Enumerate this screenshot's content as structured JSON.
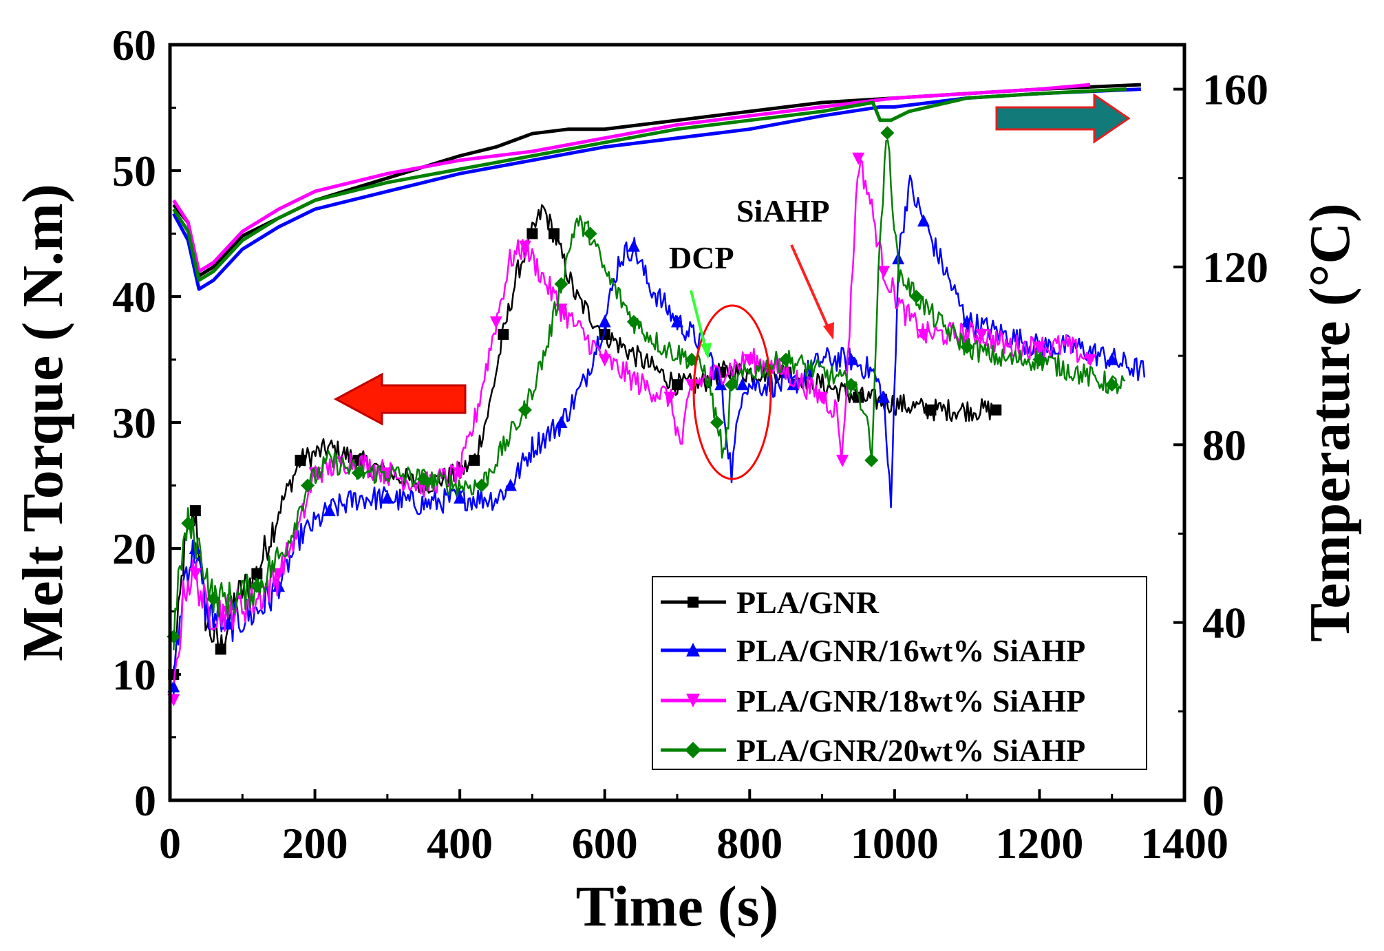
{
  "chart_data": {
    "type": "line",
    "xlabel": "Time (s)",
    "ylabel": "Melt Torque ( N.m)",
    "y2label": "Temperature (°C)",
    "xlim": [
      0,
      1400
    ],
    "ylim": [
      0,
      60
    ],
    "y2lim": [
      0,
      170
    ],
    "xticks": [
      0,
      200,
      400,
      600,
      800,
      1000,
      1200,
      1400
    ],
    "yticks": [
      0,
      10,
      20,
      30,
      40,
      50,
      60
    ],
    "y2ticks": [
      0,
      40,
      80,
      120,
      160
    ],
    "legend_position": "bottom-right",
    "series": [
      {
        "name": "PLA/GNR",
        "color": "#000000",
        "marker": "square",
        "points": [
          [
            5,
            10
          ],
          [
            20,
            20
          ],
          [
            35,
            23
          ],
          [
            50,
            14
          ],
          [
            70,
            12
          ],
          [
            90,
            16
          ],
          [
            120,
            18
          ],
          [
            150,
            23
          ],
          [
            180,
            27
          ],
          [
            220,
            28
          ],
          [
            260,
            27
          ],
          [
            300,
            26
          ],
          [
            350,
            25
          ],
          [
            400,
            26
          ],
          [
            420,
            27
          ],
          [
            440,
            31
          ],
          [
            460,
            37
          ],
          [
            480,
            42
          ],
          [
            500,
            45
          ],
          [
            515,
            47
          ],
          [
            530,
            45
          ],
          [
            560,
            40
          ],
          [
            600,
            37
          ],
          [
            650,
            35
          ],
          [
            700,
            33
          ],
          [
            730,
            33
          ],
          [
            760,
            34
          ],
          [
            800,
            34
          ],
          [
            850,
            34
          ],
          [
            900,
            33
          ],
          [
            950,
            32
          ],
          [
            1000,
            31.5
          ],
          [
            1050,
            31
          ],
          [
            1100,
            31
          ],
          [
            1140,
            31
          ]
        ],
        "temp": [
          [
            5,
            134
          ],
          [
            25,
            130
          ],
          [
            40,
            118
          ],
          [
            60,
            120
          ],
          [
            100,
            127
          ],
          [
            150,
            131
          ],
          [
            200,
            135
          ],
          [
            300,
            140
          ],
          [
            400,
            145
          ],
          [
            450,
            147
          ],
          [
            500,
            150
          ],
          [
            550,
            151
          ],
          [
            600,
            151
          ],
          [
            700,
            153
          ],
          [
            800,
            155
          ],
          [
            900,
            157
          ],
          [
            1000,
            158
          ],
          [
            1100,
            159
          ],
          [
            1200,
            160
          ],
          [
            1340,
            161
          ]
        ]
      },
      {
        "name": "PLA/GNR/16wt% SiAHP",
        "color": "#0000ff",
        "marker": "triangle-up",
        "points": [
          [
            5,
            9
          ],
          [
            20,
            18
          ],
          [
            35,
            20
          ],
          [
            50,
            15
          ],
          [
            80,
            14
          ],
          [
            120,
            15
          ],
          [
            150,
            17
          ],
          [
            180,
            21
          ],
          [
            220,
            23
          ],
          [
            260,
            24
          ],
          [
            300,
            24
          ],
          [
            350,
            23.5
          ],
          [
            400,
            24
          ],
          [
            450,
            24
          ],
          [
            470,
            25
          ],
          [
            500,
            28
          ],
          [
            540,
            30
          ],
          [
            570,
            33
          ],
          [
            600,
            38
          ],
          [
            620,
            43
          ],
          [
            640,
            44
          ],
          [
            660,
            41
          ],
          [
            700,
            38
          ],
          [
            740,
            36
          ],
          [
            760,
            33
          ],
          [
            775,
            26
          ],
          [
            790,
            33
          ],
          [
            820,
            33
          ],
          [
            860,
            33
          ],
          [
            900,
            35
          ],
          [
            940,
            35
          ],
          [
            970,
            34
          ],
          [
            985,
            32
          ],
          [
            995,
            23
          ],
          [
            1005,
            43
          ],
          [
            1020,
            49
          ],
          [
            1040,
            46
          ],
          [
            1070,
            42
          ],
          [
            1100,
            38
          ],
          [
            1150,
            37
          ],
          [
            1200,
            36
          ],
          [
            1250,
            36
          ],
          [
            1300,
            35
          ],
          [
            1345,
            34
          ]
        ],
        "temp": [
          [
            5,
            132
          ],
          [
            25,
            126
          ],
          [
            40,
            115
          ],
          [
            60,
            117
          ],
          [
            100,
            124
          ],
          [
            150,
            129
          ],
          [
            200,
            133
          ],
          [
            300,
            137
          ],
          [
            400,
            141
          ],
          [
            500,
            144
          ],
          [
            600,
            147
          ],
          [
            700,
            149
          ],
          [
            800,
            151
          ],
          [
            900,
            154
          ],
          [
            980,
            156
          ],
          [
            1000,
            156
          ],
          [
            1100,
            158
          ],
          [
            1200,
            159
          ],
          [
            1340,
            160
          ]
        ]
      },
      {
        "name": "PLA/GNR/18wt% SiAHP",
        "color": "#ff00ff",
        "marker": "triangle-down",
        "points": [
          [
            5,
            8
          ],
          [
            20,
            17
          ],
          [
            35,
            18
          ],
          [
            50,
            15
          ],
          [
            80,
            15
          ],
          [
            120,
            16
          ],
          [
            150,
            18
          ],
          [
            180,
            22
          ],
          [
            200,
            26
          ],
          [
            250,
            27
          ],
          [
            300,
            26
          ],
          [
            350,
            25
          ],
          [
            400,
            26
          ],
          [
            420,
            30
          ],
          [
            450,
            38
          ],
          [
            470,
            43
          ],
          [
            490,
            44
          ],
          [
            510,
            42
          ],
          [
            540,
            39
          ],
          [
            570,
            37
          ],
          [
            600,
            35
          ],
          [
            650,
            33
          ],
          [
            690,
            32
          ],
          [
            705,
            28
          ],
          [
            720,
            33
          ],
          [
            760,
            34
          ],
          [
            800,
            35
          ],
          [
            850,
            34
          ],
          [
            900,
            32
          ],
          [
            920,
            31
          ],
          [
            928,
            27
          ],
          [
            940,
            40
          ],
          [
            950,
            51
          ],
          [
            965,
            48
          ],
          [
            985,
            42
          ],
          [
            1010,
            39
          ],
          [
            1040,
            37
          ],
          [
            1080,
            37
          ],
          [
            1120,
            37
          ],
          [
            1160,
            36
          ],
          [
            1200,
            36
          ],
          [
            1240,
            36
          ],
          [
            1270,
            35
          ]
        ],
        "temp": [
          [
            5,
            135
          ],
          [
            25,
            130
          ],
          [
            40,
            119
          ],
          [
            60,
            121
          ],
          [
            100,
            128
          ],
          [
            150,
            133
          ],
          [
            200,
            137
          ],
          [
            300,
            141
          ],
          [
            400,
            144
          ],
          [
            500,
            146
          ],
          [
            600,
            149
          ],
          [
            700,
            152
          ],
          [
            800,
            154
          ],
          [
            900,
            156
          ],
          [
            1000,
            158
          ],
          [
            1100,
            159
          ],
          [
            1200,
            160
          ],
          [
            1270,
            161
          ]
        ]
      },
      {
        "name": "PLA/GNR/20wt% SiAHP",
        "color": "#008000",
        "marker": "diamond",
        "points": [
          [
            5,
            13
          ],
          [
            15,
            19
          ],
          [
            25,
            22
          ],
          [
            40,
            20
          ],
          [
            60,
            16
          ],
          [
            90,
            16
          ],
          [
            120,
            17
          ],
          [
            160,
            20
          ],
          [
            190,
            25
          ],
          [
            220,
            27
          ],
          [
            260,
            26
          ],
          [
            300,
            26
          ],
          [
            350,
            25.5
          ],
          [
            400,
            25
          ],
          [
            430,
            25
          ],
          [
            460,
            28
          ],
          [
            490,
            31
          ],
          [
            520,
            36
          ],
          [
            540,
            41
          ],
          [
            560,
            46
          ],
          [
            580,
            45
          ],
          [
            600,
            42
          ],
          [
            640,
            38
          ],
          [
            680,
            36
          ],
          [
            720,
            35
          ],
          [
            740,
            34
          ],
          [
            755,
            30
          ],
          [
            765,
            27
          ],
          [
            775,
            33
          ],
          [
            800,
            34
          ],
          [
            850,
            35
          ],
          [
            900,
            34
          ],
          [
            940,
            33
          ],
          [
            960,
            31
          ],
          [
            968,
            27
          ],
          [
            980,
            45
          ],
          [
            990,
            53
          ],
          [
            1005,
            42
          ],
          [
            1030,
            40
          ],
          [
            1060,
            38
          ],
          [
            1100,
            36
          ],
          [
            1150,
            35
          ],
          [
            1200,
            35
          ],
          [
            1250,
            34
          ],
          [
            1300,
            33
          ],
          [
            1320,
            33
          ]
        ],
        "temp": [
          [
            5,
            133
          ],
          [
            25,
            128
          ],
          [
            40,
            117
          ],
          [
            60,
            119
          ],
          [
            100,
            126
          ],
          [
            150,
            131
          ],
          [
            200,
            135
          ],
          [
            300,
            139
          ],
          [
            400,
            142
          ],
          [
            500,
            145
          ],
          [
            600,
            148
          ],
          [
            700,
            151
          ],
          [
            800,
            153
          ],
          [
            900,
            155
          ],
          [
            970,
            157
          ],
          [
            980,
            153
          ],
          [
            995,
            153
          ],
          [
            1020,
            155
          ],
          [
            1100,
            158
          ],
          [
            1200,
            159
          ],
          [
            1320,
            160
          ]
        ]
      }
    ],
    "annotations": [
      "DCP",
      "SiAHP"
    ]
  }
}
